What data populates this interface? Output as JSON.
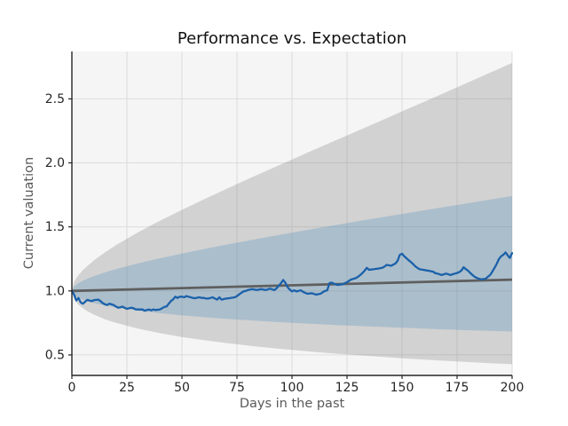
{
  "chart_data": {
    "type": "line",
    "title": "Performance vs. Expectation",
    "xlabel": "Days in the past",
    "ylabel": "Current valuation",
    "xlim": [
      0,
      200
    ],
    "ylim": [
      0.34,
      2.87
    ],
    "xticks": [
      0,
      25,
      50,
      75,
      100,
      125,
      150,
      175,
      200
    ],
    "yticks": [
      0.5,
      1.0,
      1.5,
      2.0,
      2.5
    ],
    "grid": true,
    "legend": "none",
    "colors": {
      "plot_background": "#f5f5f5",
      "grid": "#dcdcdc",
      "spine": "#262626",
      "tick_label": "#262626",
      "axis_label": "#595959",
      "title": "#111111",
      "series_line": "#1a61aa",
      "trend_line": "#5f5f5f",
      "outer_band": "rgba(128,128,128,0.30)",
      "inner_band": "rgba(31,119,180,0.22)"
    },
    "trend": {
      "name": "expectation-line",
      "x": [
        0,
        200
      ],
      "y": [
        1.0,
        1.088
      ]
    },
    "bands": [
      {
        "name": "outer-band-2sigma",
        "x": [
          0,
          1,
          2,
          3,
          5,
          7,
          10,
          15,
          20,
          30,
          40,
          50,
          60,
          70,
          80,
          90,
          100,
          110,
          120,
          130,
          140,
          150,
          160,
          170,
          180,
          190,
          200
        ],
        "top": [
          1.0,
          1.069,
          1.099,
          1.123,
          1.162,
          1.195,
          1.238,
          1.301,
          1.357,
          1.457,
          1.548,
          1.633,
          1.715,
          1.795,
          1.873,
          1.95,
          2.026,
          2.102,
          2.177,
          2.252,
          2.326,
          2.402,
          2.477,
          2.552,
          2.628,
          2.704,
          2.78
        ],
        "bottom": [
          1.0,
          0.936,
          0.911,
          0.893,
          0.864,
          0.842,
          0.815,
          0.779,
          0.75,
          0.705,
          0.67,
          0.64,
          0.615,
          0.593,
          0.573,
          0.555,
          0.539,
          0.524,
          0.51,
          0.498,
          0.486,
          0.474,
          0.464,
          0.454,
          0.445,
          0.436,
          0.427
        ]
      },
      {
        "name": "inner-band-1sigma",
        "x": [
          0,
          1,
          2,
          3,
          5,
          7,
          10,
          15,
          20,
          30,
          40,
          50,
          60,
          70,
          80,
          90,
          100,
          110,
          120,
          130,
          140,
          150,
          160,
          170,
          180,
          190,
          200
        ],
        "top": [
          1.0,
          1.034,
          1.049,
          1.06,
          1.079,
          1.095,
          1.115,
          1.145,
          1.17,
          1.215,
          1.255,
          1.292,
          1.327,
          1.361,
          1.393,
          1.424,
          1.455,
          1.485,
          1.515,
          1.544,
          1.573,
          1.601,
          1.629,
          1.657,
          1.685,
          1.713,
          1.741
        ],
        "bottom": [
          1.0,
          0.968,
          0.955,
          0.946,
          0.931,
          0.919,
          0.905,
          0.886,
          0.87,
          0.845,
          0.826,
          0.809,
          0.795,
          0.782,
          0.771,
          0.76,
          0.75,
          0.742,
          0.733,
          0.726,
          0.719,
          0.712,
          0.705,
          0.699,
          0.693,
          0.688,
          0.683
        ]
      }
    ],
    "series": [
      {
        "name": "performance-line",
        "x_start": 0,
        "x_step": 1,
        "y": [
          1.0,
          0.97,
          0.925,
          0.945,
          0.91,
          0.9,
          0.915,
          0.93,
          0.925,
          0.92,
          0.928,
          0.93,
          0.932,
          0.92,
          0.905,
          0.895,
          0.89,
          0.9,
          0.895,
          0.89,
          0.878,
          0.868,
          0.872,
          0.877,
          0.868,
          0.86,
          0.865,
          0.868,
          0.865,
          0.856,
          0.855,
          0.855,
          0.856,
          0.845,
          0.85,
          0.855,
          0.848,
          0.855,
          0.851,
          0.853,
          0.855,
          0.865,
          0.875,
          0.878,
          0.9,
          0.92,
          0.935,
          0.955,
          0.945,
          0.955,
          0.955,
          0.95,
          0.96,
          0.955,
          0.95,
          0.945,
          0.943,
          0.947,
          0.95,
          0.945,
          0.945,
          0.94,
          0.94,
          0.945,
          0.95,
          0.94,
          0.932,
          0.95,
          0.932,
          0.936,
          0.94,
          0.942,
          0.945,
          0.947,
          0.95,
          0.96,
          0.973,
          0.985,
          0.996,
          1.0,
          1.007,
          1.01,
          1.014,
          1.01,
          1.007,
          1.01,
          1.014,
          1.01,
          1.007,
          1.012,
          1.018,
          1.012,
          1.007,
          1.02,
          1.041,
          1.06,
          1.086,
          1.063,
          1.03,
          1.01,
          0.996,
          1.005,
          0.996,
          1.0,
          1.005,
          0.993,
          0.985,
          0.978,
          0.98,
          0.982,
          0.976,
          0.971,
          0.975,
          0.978,
          0.99,
          1.0,
          1.005,
          1.06,
          1.065,
          1.057,
          1.05,
          1.046,
          1.05,
          1.052,
          1.06,
          1.068,
          1.08,
          1.09,
          1.095,
          1.1,
          1.11,
          1.124,
          1.14,
          1.158,
          1.18,
          1.165,
          1.167,
          1.169,
          1.172,
          1.174,
          1.177,
          1.18,
          1.19,
          1.203,
          1.2,
          1.196,
          1.205,
          1.214,
          1.235,
          1.282,
          1.29,
          1.27,
          1.255,
          1.24,
          1.226,
          1.21,
          1.192,
          1.18,
          1.169,
          1.166,
          1.164,
          1.16,
          1.158,
          1.154,
          1.151,
          1.14,
          1.135,
          1.13,
          1.124,
          1.13,
          1.135,
          1.13,
          1.124,
          1.13,
          1.135,
          1.14,
          1.147,
          1.16,
          1.185,
          1.17,
          1.158,
          1.14,
          1.124,
          1.11,
          1.101,
          1.095,
          1.09,
          1.093,
          1.095,
          1.11,
          1.124,
          1.15,
          1.18,
          1.21,
          1.248,
          1.27,
          1.282,
          1.3,
          1.278,
          1.258,
          1.295
        ]
      }
    ]
  }
}
